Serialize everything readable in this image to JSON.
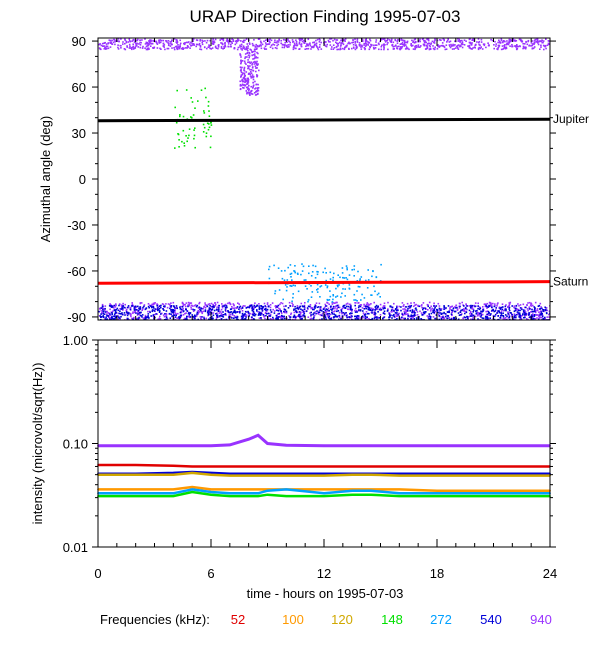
{
  "title": "URAP Direction Finding  1995-07-03",
  "xlabel": "time - hours on 1995-07-03",
  "freq_legend": {
    "label": "Frequencies (kHz):",
    "items": [
      {
        "value": "52",
        "color": "#e00000"
      },
      {
        "value": "100",
        "color": "#ff9900"
      },
      {
        "value": "120",
        "color": "#d0a800"
      },
      {
        "value": "148",
        "color": "#00e000"
      },
      {
        "value": "272",
        "color": "#00a0ff"
      },
      {
        "value": "540",
        "color": "#0000d8"
      },
      {
        "value": "940",
        "color": "#9933ff"
      }
    ]
  },
  "chart_data": [
    {
      "type": "scatter",
      "panel": "top",
      "ylabel": "Azimuthal angle (deg)",
      "xlim": [
        0,
        24
      ],
      "ylim": [
        -92,
        92
      ],
      "x_ticks": [
        "0",
        "6",
        "12",
        "18",
        "24"
      ],
      "y_ticks": [
        "90",
        "60",
        "30",
        "0",
        "-30",
        "-60",
        "-90"
      ],
      "grid": false,
      "reference_lines": [
        {
          "name": "Jupiter",
          "y_start": 38,
          "y_end": 39,
          "color": "#000000"
        },
        {
          "name": "Saturn",
          "y_start": -68,
          "y_end": -67,
          "color": "#ff0000"
        }
      ],
      "bands": [
        {
          "freq": "940",
          "y_range": [
            85,
            92
          ],
          "color": "#9933ff"
        },
        {
          "freq": "940",
          "y_range": [
            -92,
            -80
          ],
          "color": "#9933ff"
        },
        {
          "freq": "540",
          "y_range": [
            -92,
            -82
          ],
          "color": "#0000d8"
        }
      ],
      "features": [
        {
          "freq": "940",
          "x_range": [
            7.5,
            8.5
          ],
          "y_min": 55,
          "description_freq_color": "#9933ff"
        },
        {
          "freq": "148",
          "x_range": [
            4,
            6
          ],
          "y_range": [
            20,
            60
          ],
          "color": "#00e000"
        },
        {
          "freq": "272",
          "x_range": [
            9,
            15
          ],
          "y_range": [
            -80,
            -55
          ],
          "color": "#00a0ff"
        }
      ]
    },
    {
      "type": "line",
      "panel": "bottom",
      "ylabel": "intensity (microvolt/sqrt(Hz))",
      "xlim": [
        0,
        24
      ],
      "ylim": [
        0.01,
        1.0
      ],
      "yscale": "log",
      "x_ticks": [
        "0",
        "6",
        "12",
        "18",
        "24"
      ],
      "y_ticks": [
        "1.00",
        "0.10",
        "0.01"
      ],
      "grid": false,
      "x": [
        0,
        2,
        4,
        5,
        6,
        7,
        8,
        8.5,
        9,
        10,
        12,
        13.5,
        14.5,
        16,
        18,
        20,
        22,
        24
      ],
      "series": [
        {
          "freq": "940",
          "color": "#9933ff",
          "values": [
            0.095,
            0.095,
            0.095,
            0.095,
            0.095,
            0.097,
            0.11,
            0.12,
            0.1,
            0.096,
            0.095,
            0.095,
            0.095,
            0.095,
            0.095,
            0.095,
            0.095,
            0.095
          ]
        },
        {
          "freq": "52",
          "color": "#e00000",
          "values": [
            0.062,
            0.062,
            0.061,
            0.06,
            0.06,
            0.06,
            0.06,
            0.06,
            0.06,
            0.06,
            0.06,
            0.06,
            0.06,
            0.06,
            0.06,
            0.06,
            0.06,
            0.06
          ]
        },
        {
          "freq": "540",
          "color": "#0000d8",
          "values": [
            0.051,
            0.051,
            0.052,
            0.053,
            0.052,
            0.051,
            0.051,
            0.051,
            0.051,
            0.051,
            0.051,
            0.051,
            0.051,
            0.051,
            0.051,
            0.051,
            0.051,
            0.051
          ]
        },
        {
          "freq": "120",
          "color": "#d0a800",
          "values": [
            0.05,
            0.05,
            0.05,
            0.052,
            0.05,
            0.049,
            0.049,
            0.049,
            0.049,
            0.049,
            0.049,
            0.05,
            0.05,
            0.049,
            0.049,
            0.049,
            0.049,
            0.049
          ]
        },
        {
          "freq": "100",
          "color": "#ff9900",
          "values": [
            0.036,
            0.036,
            0.036,
            0.038,
            0.036,
            0.036,
            0.036,
            0.036,
            0.036,
            0.036,
            0.036,
            0.036,
            0.036,
            0.036,
            0.035,
            0.035,
            0.035,
            0.035
          ]
        },
        {
          "freq": "272",
          "color": "#00a0ff",
          "values": [
            0.033,
            0.033,
            0.033,
            0.036,
            0.034,
            0.033,
            0.033,
            0.033,
            0.035,
            0.036,
            0.033,
            0.035,
            0.035,
            0.033,
            0.033,
            0.033,
            0.033,
            0.033
          ]
        },
        {
          "freq": "148",
          "color": "#00e000",
          "values": [
            0.031,
            0.031,
            0.031,
            0.034,
            0.032,
            0.031,
            0.031,
            0.031,
            0.032,
            0.031,
            0.031,
            0.032,
            0.032,
            0.031,
            0.031,
            0.031,
            0.031,
            0.031
          ]
        }
      ]
    }
  ]
}
